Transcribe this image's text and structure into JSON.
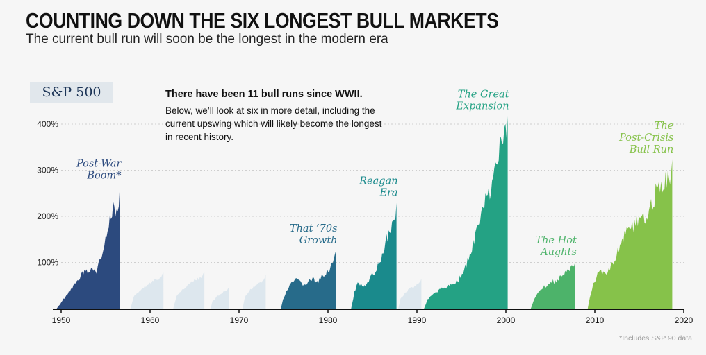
{
  "header": {
    "title": "COUNTING DOWN THE SIX LONGEST BULL MARKETS",
    "subtitle": "The current bull run will soon be the longest in the modern era"
  },
  "badge": "S&P 500",
  "note": {
    "headline": "There have been 11 bull runs since WWII.",
    "body": "Below, we’ll look at six in more detail, including the current upswing which will likely become the longest in recent history."
  },
  "footnote": "*Includes S&P 90 data",
  "chart_data": {
    "type": "area",
    "title": "COUNTING DOWN THE SIX LONGEST BULL MARKETS",
    "subtitle": "The current bull run will soon be the longest in the modern era",
    "ylabel": "",
    "xlabel": "",
    "xlim": [
      1950,
      2020
    ],
    "ylim": [
      0,
      400
    ],
    "x_ticks": [
      1950,
      1960,
      1970,
      1980,
      1990,
      2000,
      2010,
      2020
    ],
    "y_ticks": [
      {
        "value": 100,
        "label": "100%"
      },
      {
        "value": 200,
        "label": "200%"
      },
      {
        "value": 300,
        "label": "300%"
      },
      {
        "value": 400,
        "label": "400%"
      }
    ],
    "grid": true,
    "highlighted": [
      {
        "label_lines": [
          "Post-War",
          "Boom*"
        ],
        "start": 1949.5,
        "end": 1956.6,
        "peak": 267,
        "color": "#2c4a7e",
        "shape": [
          [
            0,
            0
          ],
          [
            0.05,
            10
          ],
          [
            0.12,
            25
          ],
          [
            0.2,
            40
          ],
          [
            0.28,
            55
          ],
          [
            0.36,
            72
          ],
          [
            0.44,
            90
          ],
          [
            0.5,
            85
          ],
          [
            0.56,
            92
          ],
          [
            0.63,
            88
          ],
          [
            0.68,
            110
          ],
          [
            0.74,
            140
          ],
          [
            0.8,
            180
          ],
          [
            0.86,
            215
          ],
          [
            0.9,
            240
          ],
          [
            0.95,
            225
          ],
          [
            1,
            267
          ]
        ]
      },
      {
        "label_lines": [
          "That ’70s",
          "Growth"
        ],
        "start": 1974.7,
        "end": 1980.9,
        "peak": 126,
        "color": "#276b8a",
        "shape": [
          [
            0,
            0
          ],
          [
            0.05,
            25
          ],
          [
            0.12,
            45
          ],
          [
            0.2,
            60
          ],
          [
            0.28,
            68
          ],
          [
            0.35,
            62
          ],
          [
            0.42,
            55
          ],
          [
            0.5,
            63
          ],
          [
            0.58,
            70
          ],
          [
            0.66,
            60
          ],
          [
            0.74,
            72
          ],
          [
            0.82,
            88
          ],
          [
            0.9,
            95
          ],
          [
            0.95,
            110
          ],
          [
            1,
            126
          ]
        ]
      },
      {
        "label_lines": [
          "Reagan",
          "Era"
        ],
        "start": 1982.6,
        "end": 1987.7,
        "peak": 229,
        "color": "#1a8a8c",
        "shape": [
          [
            0,
            0
          ],
          [
            0.08,
            40
          ],
          [
            0.16,
            62
          ],
          [
            0.24,
            55
          ],
          [
            0.32,
            50
          ],
          [
            0.4,
            68
          ],
          [
            0.48,
            80
          ],
          [
            0.56,
            95
          ],
          [
            0.64,
            110
          ],
          [
            0.72,
            140
          ],
          [
            0.8,
            175
          ],
          [
            0.88,
            190
          ],
          [
            0.94,
            210
          ],
          [
            1,
            229
          ]
        ]
      },
      {
        "label_lines": [
          "The Great",
          "Expansion"
        ],
        "start": 1990.8,
        "end": 2000.2,
        "peak": 417,
        "color": "#24a284",
        "shape": [
          [
            0,
            0
          ],
          [
            0.05,
            25
          ],
          [
            0.12,
            35
          ],
          [
            0.2,
            45
          ],
          [
            0.28,
            52
          ],
          [
            0.36,
            58
          ],
          [
            0.44,
            75
          ],
          [
            0.52,
            110
          ],
          [
            0.6,
            160
          ],
          [
            0.68,
            220
          ],
          [
            0.76,
            270
          ],
          [
            0.84,
            320
          ],
          [
            0.9,
            370
          ],
          [
            0.95,
            395
          ],
          [
            1,
            417
          ]
        ]
      },
      {
        "label_lines": [
          "The Hot",
          "Aughts"
        ],
        "start": 2002.8,
        "end": 2007.8,
        "peak": 101,
        "color": "#4db36a",
        "shape": [
          [
            0,
            0
          ],
          [
            0.08,
            22
          ],
          [
            0.16,
            40
          ],
          [
            0.24,
            48
          ],
          [
            0.32,
            52
          ],
          [
            0.4,
            58
          ],
          [
            0.48,
            62
          ],
          [
            0.56,
            65
          ],
          [
            0.64,
            72
          ],
          [
            0.72,
            78
          ],
          [
            0.8,
            88
          ],
          [
            0.88,
            92
          ],
          [
            0.94,
            98
          ],
          [
            1,
            101
          ]
        ]
      },
      {
        "label_lines": [
          "The",
          "Post-Crisis",
          "Bull Run"
        ],
        "start": 2009.2,
        "end": 2018.7,
        "peak": 323,
        "color": "#86c24a",
        "shape": [
          [
            0,
            0
          ],
          [
            0.04,
            40
          ],
          [
            0.1,
            75
          ],
          [
            0.16,
            90
          ],
          [
            0.22,
            80
          ],
          [
            0.28,
            100
          ],
          [
            0.35,
            130
          ],
          [
            0.42,
            165
          ],
          [
            0.5,
            195
          ],
          [
            0.56,
            205
          ],
          [
            0.62,
            200
          ],
          [
            0.7,
            225
          ],
          [
            0.78,
            260
          ],
          [
            0.86,
            285
          ],
          [
            0.93,
            300
          ],
          [
            1,
            323
          ]
        ]
      }
    ],
    "minor": [
      {
        "start": 1957.8,
        "end": 1961.5,
        "peak": 78
      },
      {
        "start": 1962.6,
        "end": 1966.1,
        "peak": 80
      },
      {
        "start": 1966.8,
        "end": 1968.9,
        "peak": 47
      },
      {
        "start": 1970.4,
        "end": 1973.0,
        "peak": 74
      },
      {
        "start": 1987.9,
        "end": 1990.5,
        "peak": 65
      }
    ]
  }
}
